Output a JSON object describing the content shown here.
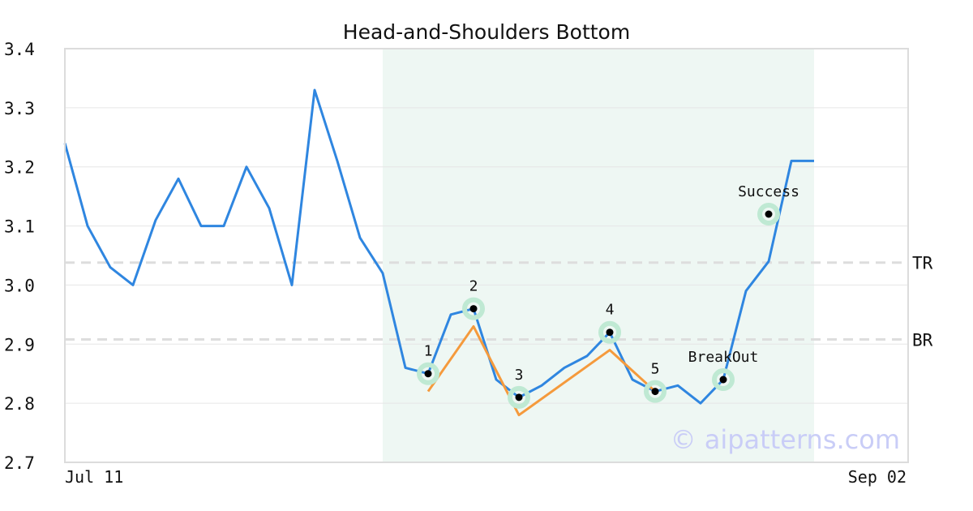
{
  "chart_data": {
    "type": "line",
    "title": "Head-and-Shoulders Bottom",
    "xlabel": "",
    "ylabel": "",
    "ylim": [
      2.7,
      3.4
    ],
    "yticks": [
      "2.7",
      "2.8",
      "2.9",
      "3.0",
      "3.1",
      "3.2",
      "3.3",
      "3.4"
    ],
    "x_tick_labels": [
      "Jul 11",
      "Sep 02"
    ],
    "grid": true,
    "pattern_region": {
      "start_index": 14,
      "end_index": 33
    },
    "series": [
      {
        "role": "price",
        "color": "#2f86e0",
        "values": [
          3.24,
          3.1,
          3.03,
          3.0,
          3.11,
          3.18,
          3.1,
          3.1,
          3.2,
          3.13,
          3.0,
          3.33,
          3.21,
          3.08,
          3.02,
          2.86,
          2.85,
          2.95,
          2.96,
          2.84,
          2.81,
          2.83,
          2.86,
          2.88,
          2.92,
          2.84,
          2.82,
          2.83,
          2.8,
          2.84,
          2.99,
          3.04,
          3.21,
          3.21
        ]
      },
      {
        "role": "pattern",
        "color": "#f59a3c",
        "x": [
          16,
          18,
          20,
          24,
          26
        ],
        "values": [
          2.82,
          2.93,
          2.78,
          2.89,
          2.82
        ]
      }
    ],
    "levels": [
      {
        "label": "TR",
        "value": 3.038
      },
      {
        "label": "BR",
        "value": 2.908
      }
    ],
    "annotations": [
      {
        "label": "1",
        "x": 16,
        "y": 2.85
      },
      {
        "label": "2",
        "x": 18,
        "y": 2.96
      },
      {
        "label": "3",
        "x": 20,
        "y": 2.81
      },
      {
        "label": "4",
        "x": 24,
        "y": 2.92
      },
      {
        "label": "5",
        "x": 26,
        "y": 2.82
      },
      {
        "label": "BreakOut",
        "x": 29,
        "y": 2.84
      },
      {
        "label": "Success",
        "x": 31,
        "y": 3.12
      }
    ],
    "marker_color": "#bfe9d3",
    "region_color": "#eef7f3"
  },
  "watermark": "© aipatterns.com"
}
